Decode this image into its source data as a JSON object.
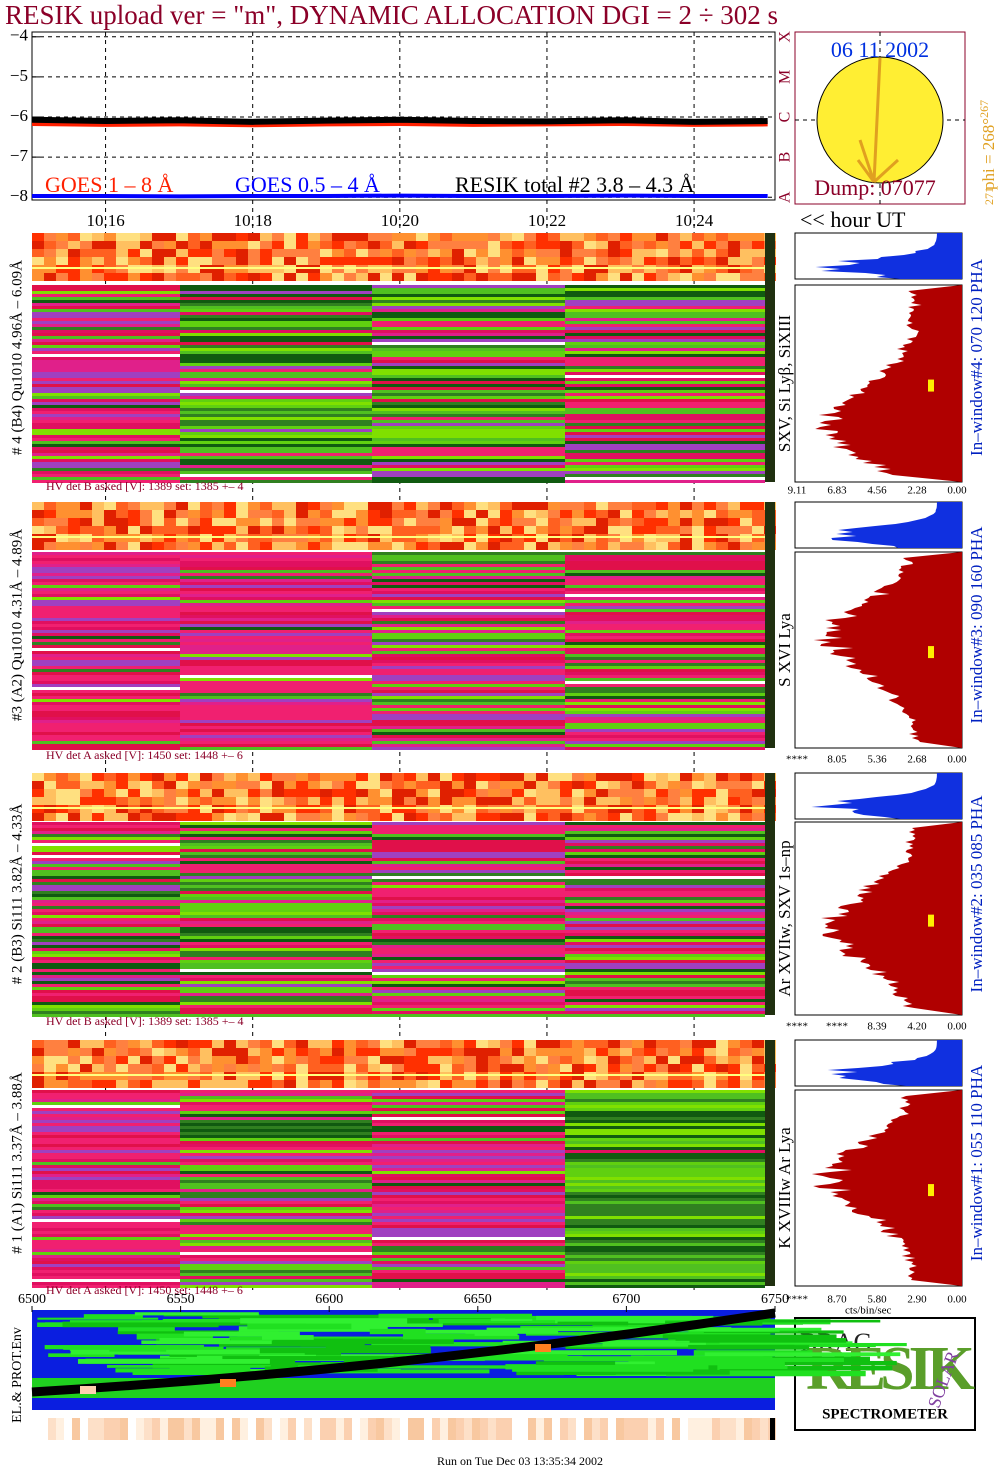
{
  "title": "RESIK upload ver = \"m\", DYNAMIC ALLOCATION  DGI =   2 ÷ 302 s",
  "chart_data": {
    "type": "line",
    "x": [
      10.15,
      10.16,
      10.17,
      10.18,
      10.19,
      10.2,
      10.21,
      10.22,
      10.23,
      10.24,
      10.25
    ],
    "xlim": [
      10.15,
      10.251
    ],
    "xticks": [
      {
        "value": 10.16,
        "label": "10.16"
      },
      {
        "value": 10.18,
        "label": "10.18"
      },
      {
        "value": 10.2,
        "label": "10.20"
      },
      {
        "value": 10.22,
        "label": "10.22"
      },
      {
        "value": 10.24,
        "label": "10.24"
      }
    ],
    "ylim": [
      -8.07,
      -3.88
    ],
    "yticks": [
      {
        "value": -4,
        "label": "−4"
      },
      {
        "value": -5,
        "label": "−5"
      },
      {
        "value": -6,
        "label": "−6"
      },
      {
        "value": -7,
        "label": "−7"
      },
      {
        "value": -8,
        "label": "−8"
      }
    ],
    "x_label": "<< hour UT",
    "grid": true,
    "series": [
      {
        "name": "GOES 1 – 8 Å",
        "color": "#ff2000",
        "values": [
          -6.15,
          -6.17,
          -6.16,
          -6.18,
          -6.16,
          -6.15,
          -6.17,
          -6.16,
          -6.15,
          -6.17,
          -6.16
        ]
      },
      {
        "name": "GOES 0.5 – 4 Å",
        "color": "#0000ff",
        "values": [
          -7.97,
          -7.97,
          -7.98,
          -7.97,
          -7.97,
          -7.96,
          -7.97,
          -7.97,
          -7.96,
          -7.97,
          -7.97
        ]
      },
      {
        "name": "RESIK total #2  3.8 – 4.3 Å",
        "color": "#000000",
        "values": [
          -6.07,
          -6.1,
          -6.08,
          -6.12,
          -6.09,
          -6.07,
          -6.1,
          -6.11,
          -6.08,
          -6.12,
          -6.1
        ]
      }
    ]
  },
  "sun": {
    "date": "06 11 2002",
    "dump": "Dump: 07077",
    "phi": "phi = 268°",
    "phi_sub": "267",
    "angle_low": "271",
    "classes": [
      "X",
      "M",
      "C",
      "B",
      "A"
    ]
  },
  "panels": [
    {
      "label": "# 4 (B4) Qu1010 4.96Å – 6.09Å",
      "line": "SXV, Si Lyβ, SiXIII",
      "window": "In–window#4:  070 120 PHA",
      "hv": "HV det B asked [V]:  1389 set:  1385  +–    4",
      "hist_ticks": [
        "9.11",
        "6.83",
        "4.56",
        "2.28",
        "0.00"
      ]
    },
    {
      "label": "#3 (A2) Qu1010  4.31Å – 4.89Å",
      "line": "S XVI Lya",
      "window": "In–window#3:  090 160 PHA",
      "hv": "HV det A asked [V]:  1450 set:  1448  +–    6",
      "hist_ticks": [
        "****",
        "8.05",
        "5.36",
        "2.68",
        "0.00"
      ]
    },
    {
      "label": "# 2 (B3) Si111  3.82Å – 4.33Å",
      "line": "Ar XVIIw, SXV 1s–np",
      "window": "In–window#2:  035 085 PHA",
      "hv": "HV det B asked [V]:  1389 set:  1385  +–    4",
      "hist_ticks": [
        "****",
        "****",
        "8.39",
        "4.20",
        "0.00"
      ]
    },
    {
      "label": "# 1 (A1) Si111  3.37Å – 3.88Å",
      "line": "K XVIIIw  Ar Lya",
      "window": "In–window#1:  055 110 PHA",
      "hv": "HV det A asked [V]:  1450 set:  1448  +–    6",
      "hist_ticks": [
        "****",
        "8.70",
        "5.80",
        "2.90",
        "0.00"
      ]
    }
  ],
  "hist_unit": "cts/bin/sec",
  "channel_axis": {
    "xlim": [
      6500,
      6750
    ],
    "xticks": [
      6500,
      6550,
      6600,
      6650,
      6700,
      6750
    ]
  },
  "env_label": "EL.& PROT.Env",
  "logo": {
    "bragg": "BRAG",
    "name": "RESIK",
    "solar": "SOLAR",
    "caption": "SPECTROMETER"
  },
  "footer": "Run on Tue Dec 03 13:35:34 2002"
}
